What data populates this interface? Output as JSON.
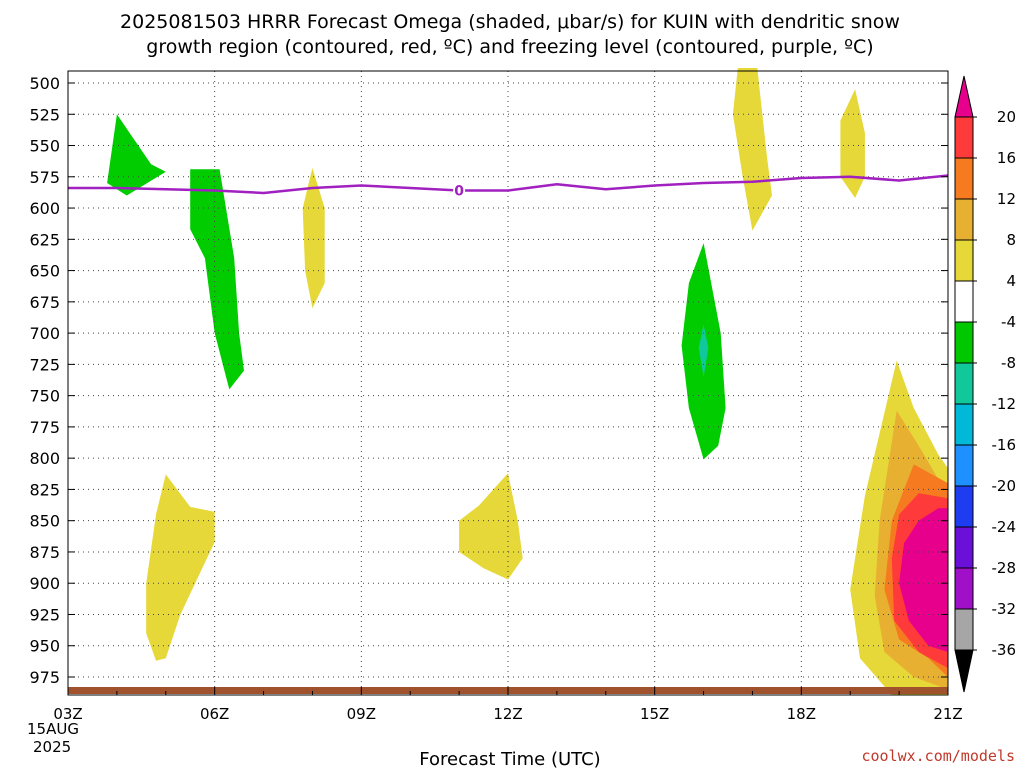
{
  "chart_data": {
    "type": "heatmap",
    "title_line1": "2025081503 HRRR Forecast Omega (shaded, μbar/s) for KUIN with dendritic snow",
    "title_line2": "growth region (contoured, red, ºC) and freezing level (contoured, purple, ºC)",
    "xlabel": "Forecast Time (UTC)",
    "x_ticks": [
      "03Z",
      "06Z",
      "09Z",
      "12Z",
      "15Z",
      "18Z",
      "21Z"
    ],
    "x_hours": [
      3,
      6,
      9,
      12,
      15,
      18,
      21
    ],
    "x_date_line1": "15AUG",
    "x_date_line2": "2025",
    "y_levels": [
      "500",
      "525",
      "550",
      "575",
      "600",
      "625",
      "650",
      "675",
      "700",
      "725",
      "750",
      "775",
      "800",
      "825",
      "850",
      "875",
      "900",
      "925",
      "950",
      "975"
    ],
    "ylim": [
      1000,
      500
    ],
    "grid": "dotted",
    "freezing_level": {
      "label": "0",
      "color": "#a020c0",
      "hours": [
        3,
        4,
        5,
        6,
        7,
        8,
        9,
        10,
        11,
        12,
        13,
        14,
        15,
        16,
        17,
        18,
        19,
        20,
        21
      ],
      "pressure_hPa": [
        584,
        584,
        585,
        586,
        588,
        584,
        582,
        584,
        586,
        586,
        581,
        585,
        582,
        580,
        579,
        576,
        575,
        578,
        574
      ]
    },
    "colorbar": {
      "labels": [
        "20",
        "16",
        "12",
        "8",
        "4",
        "-4",
        "-8",
        "-12",
        "-16",
        "-20",
        "-24",
        "-28",
        "-32",
        "-36"
      ],
      "colors": [
        "#e6008c",
        "#ff3a3a",
        "#f57a20",
        "#e8b030",
        "#e6d838",
        "#ffffff",
        "#00c800",
        "#10c89a",
        "#00b8d8",
        "#1e90ff",
        "#1e3cf0",
        "#6a10d8",
        "#a010c8",
        "#a6a6a6",
        "#000000"
      ]
    },
    "omega_regions": [
      {
        "name": "green-04z",
        "color": "#00cc00",
        "points": [
          [
            4.0,
            525
          ],
          [
            4.7,
            565
          ],
          [
            5.0,
            571
          ],
          [
            4.2,
            590
          ],
          [
            3.8,
            580
          ]
        ]
      },
      {
        "name": "green-05z",
        "color": "#00cc00",
        "points": [
          [
            5.5,
            569
          ],
          [
            6.1,
            569
          ],
          [
            6.4,
            640
          ],
          [
            6.5,
            700
          ],
          [
            6.6,
            730
          ],
          [
            6.3,
            745
          ],
          [
            6.0,
            700
          ],
          [
            5.8,
            640
          ],
          [
            5.5,
            617
          ]
        ]
      },
      {
        "name": "yellow-08z",
        "color": "#e6d838",
        "points": [
          [
            8.0,
            568
          ],
          [
            8.25,
            600
          ],
          [
            8.25,
            660
          ],
          [
            8.0,
            680
          ],
          [
            7.85,
            650
          ],
          [
            7.8,
            600
          ]
        ]
      },
      {
        "name": "yellow-17z",
        "color": "#e6d838",
        "points": [
          [
            16.7,
            488
          ],
          [
            17.1,
            488
          ],
          [
            17.3,
            560
          ],
          [
            17.4,
            590
          ],
          [
            17.0,
            618
          ],
          [
            16.8,
            575
          ],
          [
            16.6,
            525
          ]
        ]
      },
      {
        "name": "yellow-19z",
        "color": "#e6d838",
        "points": [
          [
            19.1,
            505
          ],
          [
            19.3,
            540
          ],
          [
            19.3,
            575
          ],
          [
            19.1,
            592
          ],
          [
            18.8,
            575
          ],
          [
            18.8,
            530
          ]
        ]
      },
      {
        "name": "green-16z",
        "color": "#00cc00",
        "points": [
          [
            16.0,
            628
          ],
          [
            16.35,
            700
          ],
          [
            16.45,
            760
          ],
          [
            16.3,
            790
          ],
          [
            16.0,
            801
          ],
          [
            15.7,
            760
          ],
          [
            15.55,
            710
          ],
          [
            15.7,
            660
          ]
        ]
      },
      {
        "name": "teal-16z",
        "color": "#10c89a",
        "points": [
          [
            16.0,
            693
          ],
          [
            16.1,
            712
          ],
          [
            16.0,
            735
          ],
          [
            15.9,
            712
          ]
        ]
      },
      {
        "name": "yellow-05z",
        "color": "#e6d838",
        "points": [
          [
            5.0,
            813
          ],
          [
            5.5,
            839
          ],
          [
            6.0,
            843
          ],
          [
            6.0,
            867
          ],
          [
            5.3,
            925
          ],
          [
            5.0,
            960
          ],
          [
            4.8,
            962
          ],
          [
            4.6,
            940
          ],
          [
            4.6,
            900
          ],
          [
            4.8,
            845
          ]
        ]
      },
      {
        "name": "yellow-12z",
        "color": "#e6d838",
        "points": [
          [
            12.0,
            812
          ],
          [
            12.2,
            850
          ],
          [
            12.3,
            880
          ],
          [
            12.0,
            897
          ],
          [
            11.5,
            888
          ],
          [
            11.0,
            875
          ],
          [
            11.0,
            850
          ],
          [
            11.4,
            838
          ]
        ]
      },
      {
        "name": "omega-20z-4",
        "color": "#e6d838",
        "points": [
          [
            19.95,
            722
          ],
          [
            20.3,
            760
          ],
          [
            20.8,
            797
          ],
          [
            21.0,
            808
          ],
          [
            21.0,
            1000
          ],
          [
            20.5,
            1000
          ],
          [
            19.85,
            995
          ],
          [
            19.2,
            960
          ],
          [
            19.0,
            905
          ],
          [
            19.3,
            830
          ]
        ]
      },
      {
        "name": "omega-20z-8",
        "color": "#e8b030",
        "points": [
          [
            19.95,
            762
          ],
          [
            20.4,
            790
          ],
          [
            21.0,
            830
          ],
          [
            21.0,
            985
          ],
          [
            20.3,
            975
          ],
          [
            19.7,
            955
          ],
          [
            19.5,
            910
          ],
          [
            19.6,
            850
          ]
        ]
      },
      {
        "name": "omega-20z-12",
        "color": "#f57a20",
        "points": [
          [
            20.3,
            805
          ],
          [
            21.0,
            820
          ],
          [
            21.0,
            975
          ],
          [
            20.6,
            960
          ],
          [
            20.0,
            945
          ],
          [
            19.7,
            905
          ],
          [
            19.85,
            850
          ]
        ]
      },
      {
        "name": "omega-20z-16",
        "color": "#ff3a3a",
        "points": [
          [
            20.4,
            828
          ],
          [
            21.0,
            832
          ],
          [
            21.0,
            968
          ],
          [
            20.4,
            955
          ],
          [
            19.9,
            930
          ],
          [
            19.85,
            880
          ],
          [
            20.0,
            845
          ]
        ]
      },
      {
        "name": "omega-20z-20",
        "color": "#e6008c",
        "points": [
          [
            20.8,
            840
          ],
          [
            21.0,
            840
          ],
          [
            21.0,
            955
          ],
          [
            20.6,
            950
          ],
          [
            20.2,
            930
          ],
          [
            20.0,
            900
          ],
          [
            20.1,
            868
          ],
          [
            20.4,
            850
          ]
        ]
      }
    ],
    "terrain": {
      "color": "#a0522d"
    }
  },
  "credit": "coolwx.com/models"
}
